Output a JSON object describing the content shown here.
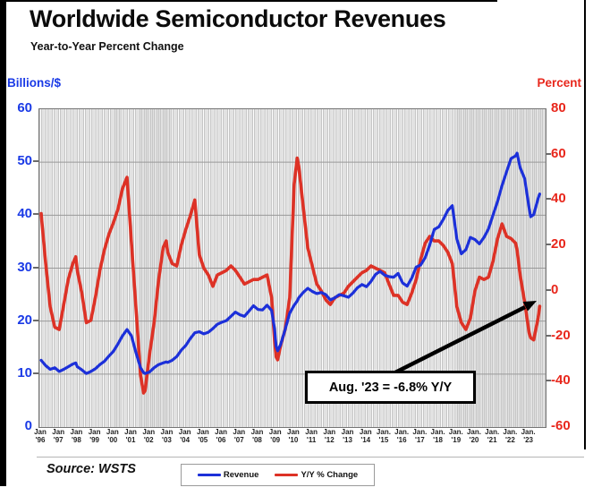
{
  "header": {
    "title": "Worldwide Semiconductor Revenues",
    "subtitle": "Year-to-Year Percent Change"
  },
  "axes": {
    "left_title": "Billions/$",
    "right_title": "Percent",
    "left_ticks": [
      60,
      50,
      40,
      30,
      20,
      10,
      0
    ],
    "right_ticks": [
      80,
      60,
      40,
      20,
      0,
      -20,
      -40,
      -60
    ],
    "x_labels": [
      {
        "m": "Jan",
        "y": "'96"
      },
      {
        "m": "Jan",
        "y": "'97"
      },
      {
        "m": "Jan",
        "y": "'98"
      },
      {
        "m": "Jan",
        "y": "'99"
      },
      {
        "m": "Jan",
        "y": "'00"
      },
      {
        "m": "Jan",
        "y": "'01"
      },
      {
        "m": "Jan",
        "y": "'02"
      },
      {
        "m": "Jan",
        "y": "'03"
      },
      {
        "m": "Jan",
        "y": "'04"
      },
      {
        "m": "Jan",
        "y": "'05"
      },
      {
        "m": "Jan",
        "y": "'06"
      },
      {
        "m": "Jan",
        "y": "'07"
      },
      {
        "m": "Jan",
        "y": "'08"
      },
      {
        "m": "Jan",
        "y": "'09"
      },
      {
        "m": "Jan",
        "y": "'10"
      },
      {
        "m": "Jan",
        "y": "'11"
      },
      {
        "m": "Jan",
        "y": "'12"
      },
      {
        "m": "Jan",
        "y": "'13"
      },
      {
        "m": "Jan",
        "y": "'14"
      },
      {
        "m": "Jan.",
        "y": "'15"
      },
      {
        "m": "Jan.",
        "y": "'16"
      },
      {
        "m": "Jan.",
        "y": "'17"
      },
      {
        "m": "Jan.",
        "y": "'18"
      },
      {
        "m": "Jan.",
        "y": "'19"
      },
      {
        "m": "Jan.",
        "y": "'20"
      },
      {
        "m": "Jan.",
        "y": "'21"
      },
      {
        "m": "Jan.",
        "y": "'22"
      },
      {
        "m": "Jan.",
        "y": "'23"
      }
    ]
  },
  "annotation": {
    "text": "Aug. '23 = -6.8% Y/Y"
  },
  "legend": {
    "items": [
      {
        "label": "Revenue",
        "color": "#1c30d9"
      },
      {
        "label": "Y/Y % Change",
        "color": "#dd3226"
      }
    ]
  },
  "source": "Source: WSTS",
  "colors": {
    "revenue_line": "#1c30d9",
    "yoy_line": "#dd3226",
    "left_axis_text": "#1a3ae6",
    "right_axis_text": "#e8271c",
    "grid_vertical": "#c6c6c6",
    "grid_horizontal": "#999999"
  },
  "chart_data": {
    "type": "line",
    "title": "Worldwide Semiconductor Revenues",
    "subtitle": "Year-to-Year Percent Change",
    "x_unit": "month",
    "x_range_plotted": [
      "1996-01",
      "2023-08"
    ],
    "left_axis": {
      "label": "Billions/$",
      "range": [
        0,
        60
      ],
      "gridline_step": 10
    },
    "right_axis": {
      "label": "Percent",
      "range": [
        -60,
        80
      ],
      "tick_step": 20
    },
    "grid": "vertical line every month; horizontal every 10 (left axis)",
    "legend_position": "bottom-center",
    "annotation": "Aug. '23 = -6.8% Y/Y (arrow points to end of Y/Y % Change line)",
    "x": [
      "1996-01",
      "1996-04",
      "1996-07",
      "1996-10",
      "1997-01",
      "1997-04",
      "1997-07",
      "1997-10",
      "1997-12",
      "1998-01",
      "1998-04",
      "1998-07",
      "1998-10",
      "1999-01",
      "1999-04",
      "1999-07",
      "1999-10",
      "2000-01",
      "2000-04",
      "2000-07",
      "2000-10",
      "2001-01",
      "2001-04",
      "2001-07",
      "2001-09",
      "2001-10",
      "2002-01",
      "2002-04",
      "2002-07",
      "2002-10",
      "2002-12",
      "2003-01",
      "2003-04",
      "2003-07",
      "2003-10",
      "2004-01",
      "2004-04",
      "2004-07",
      "2004-10",
      "2005-01",
      "2005-04",
      "2005-07",
      "2005-10",
      "2006-01",
      "2006-04",
      "2006-07",
      "2006-10",
      "2007-01",
      "2007-04",
      "2007-07",
      "2007-10",
      "2008-01",
      "2008-04",
      "2008-07",
      "2008-10",
      "2008-12",
      "2009-01",
      "2009-02",
      "2009-04",
      "2009-07",
      "2009-10",
      "2010-01",
      "2010-03",
      "2010-04",
      "2010-07",
      "2010-10",
      "2011-01",
      "2011-04",
      "2011-07",
      "2011-10",
      "2012-01",
      "2012-04",
      "2012-07",
      "2012-10",
      "2013-01",
      "2013-04",
      "2013-07",
      "2013-10",
      "2014-01",
      "2014-04",
      "2014-07",
      "2014-10",
      "2015-01",
      "2015-04",
      "2015-07",
      "2015-10",
      "2016-01",
      "2016-04",
      "2016-07",
      "2016-10",
      "2017-01",
      "2017-04",
      "2017-07",
      "2017-10",
      "2018-01",
      "2018-04",
      "2018-07",
      "2018-10",
      "2019-01",
      "2019-04",
      "2019-07",
      "2019-10",
      "2020-01",
      "2020-04",
      "2020-07",
      "2020-10",
      "2021-01",
      "2021-04",
      "2021-07",
      "2021-10",
      "2022-01",
      "2022-04",
      "2022-05",
      "2022-07",
      "2022-10",
      "2023-01",
      "2023-02",
      "2023-04",
      "2023-07",
      "2023-08"
    ],
    "series": [
      {
        "name": "Revenue",
        "axis": "left",
        "unit": "billions USD",
        "color": "#1c30d9",
        "values": [
          12.6,
          11.6,
          10.9,
          11.2,
          10.5,
          10.9,
          11.4,
          11.9,
          12.1,
          11.4,
          10.8,
          10.1,
          10.5,
          11.0,
          11.8,
          12.4,
          13.4,
          14.3,
          15.7,
          17.2,
          18.4,
          17.2,
          14.0,
          11.2,
          10.3,
          10.1,
          10.4,
          11.2,
          11.8,
          12.1,
          12.3,
          12.2,
          12.6,
          13.3,
          14.5,
          15.4,
          16.7,
          17.8,
          18.0,
          17.6,
          17.9,
          18.6,
          19.4,
          19.8,
          20.1,
          20.9,
          21.7,
          21.2,
          20.9,
          21.9,
          22.9,
          22.2,
          22.1,
          23.0,
          22.0,
          18.5,
          15.3,
          14.4,
          15.6,
          18.4,
          21.5,
          23.0,
          23.8,
          24.4,
          25.4,
          26.2,
          25.6,
          25.2,
          25.4,
          25.0,
          24.0,
          24.4,
          25.0,
          24.8,
          24.5,
          25.3,
          26.3,
          26.9,
          26.5,
          27.5,
          28.8,
          29.4,
          28.7,
          28.4,
          28.3,
          29.0,
          27.2,
          26.6,
          28.1,
          30.2,
          30.6,
          32.0,
          34.4,
          37.3,
          37.8,
          39.2,
          40.9,
          41.8,
          35.5,
          32.7,
          33.5,
          35.8,
          35.4,
          34.6,
          35.8,
          37.4,
          40.0,
          42.6,
          45.6,
          48.2,
          50.7,
          51.2,
          51.7,
          49.0,
          46.9,
          41.3,
          39.7,
          40.1,
          43.2,
          44.0
        ]
      },
      {
        "name": "Y/Y % Change",
        "axis": "right",
        "unit": "percent",
        "color": "#dd3226",
        "values": [
          34,
          12,
          -7,
          -16,
          -17,
          -6,
          5,
          12,
          15,
          9,
          -1,
          -14,
          -13,
          -3,
          9,
          18,
          25,
          30,
          36,
          45,
          50,
          21,
          -8,
          -37,
          -45,
          -44,
          -28,
          -14,
          5,
          19,
          22,
          17,
          12,
          11,
          20,
          27,
          33,
          40,
          16,
          10,
          7,
          2,
          7,
          8,
          9,
          11,
          9,
          6,
          3,
          4,
          5,
          5,
          6,
          7,
          -3,
          -22,
          -29,
          -30.4,
          -24,
          -17,
          -3,
          47,
          58.5,
          55,
          37,
          19,
          11,
          3,
          0,
          -4,
          -6,
          -3,
          -2,
          -1,
          2,
          4,
          6,
          8,
          9,
          11,
          10,
          9,
          8,
          3,
          -2,
          -2,
          -5,
          -6,
          -1,
          5,
          14,
          21,
          24,
          22,
          22,
          20,
          17,
          12,
          -7,
          -14,
          -17,
          -12,
          0,
          6,
          5,
          6,
          13,
          23,
          29.5,
          24,
          23,
          21,
          18,
          7,
          -5,
          -18.5,
          -20.7,
          -21.6,
          -11.8,
          -6.8
        ]
      }
    ]
  }
}
